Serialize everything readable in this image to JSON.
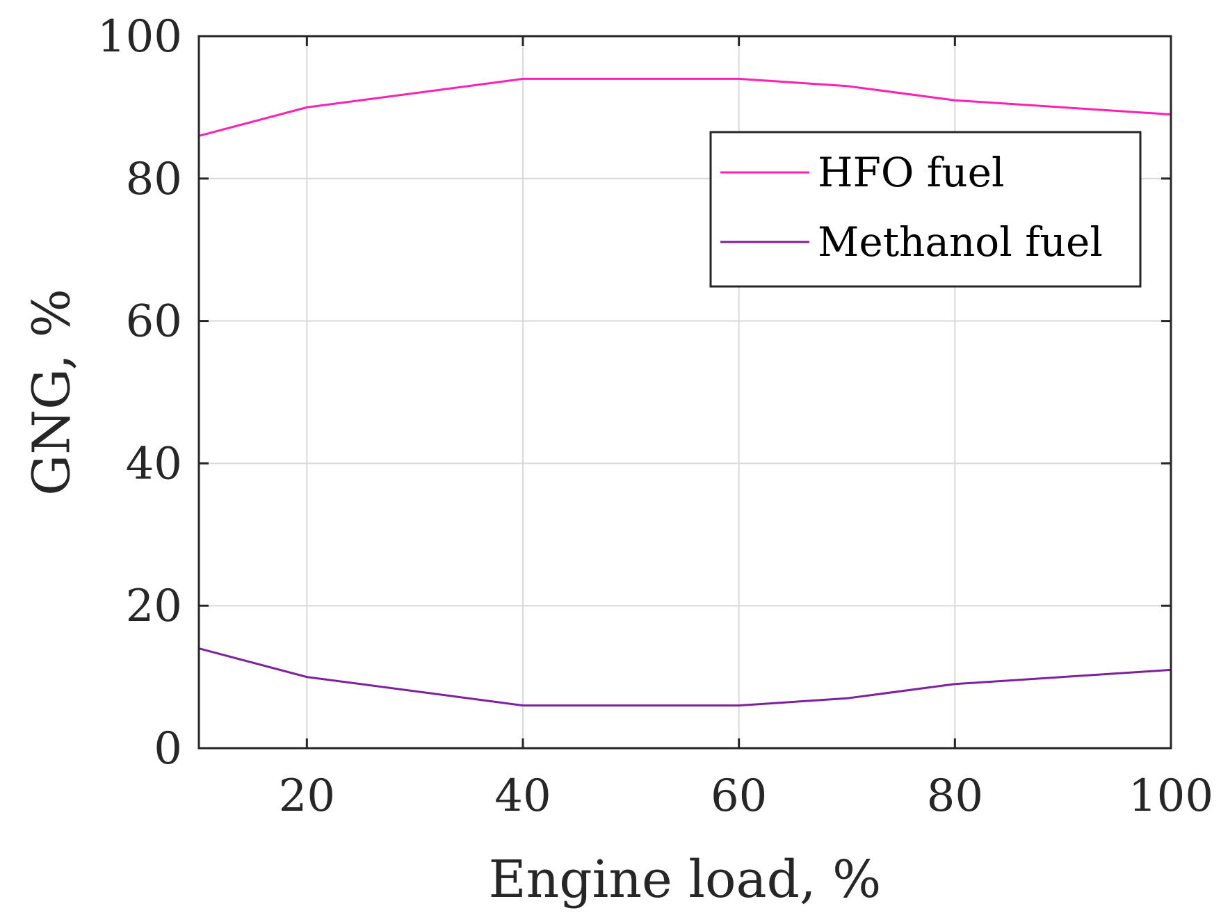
{
  "chart_data": {
    "type": "line",
    "title": "",
    "xlabel": "Engine load, %",
    "ylabel": "GNG, %",
    "xlim": [
      10,
      100
    ],
    "ylim": [
      0,
      100
    ],
    "xticks": [
      20,
      40,
      60,
      80,
      100
    ],
    "yticks": [
      0,
      20,
      40,
      60,
      80,
      100
    ],
    "grid": true,
    "legend_position": "top-right",
    "x": [
      10,
      20,
      40,
      60,
      70,
      80,
      100
    ],
    "series": [
      {
        "name": "HFO fuel",
        "color": "#ff1fb4",
        "values": [
          86,
          90,
          94,
          94,
          93,
          91,
          89
        ]
      },
      {
        "name": "Methanol fuel",
        "color": "#7e1fa0",
        "values": [
          14,
          10,
          6,
          6,
          7,
          9,
          11
        ]
      }
    ]
  }
}
